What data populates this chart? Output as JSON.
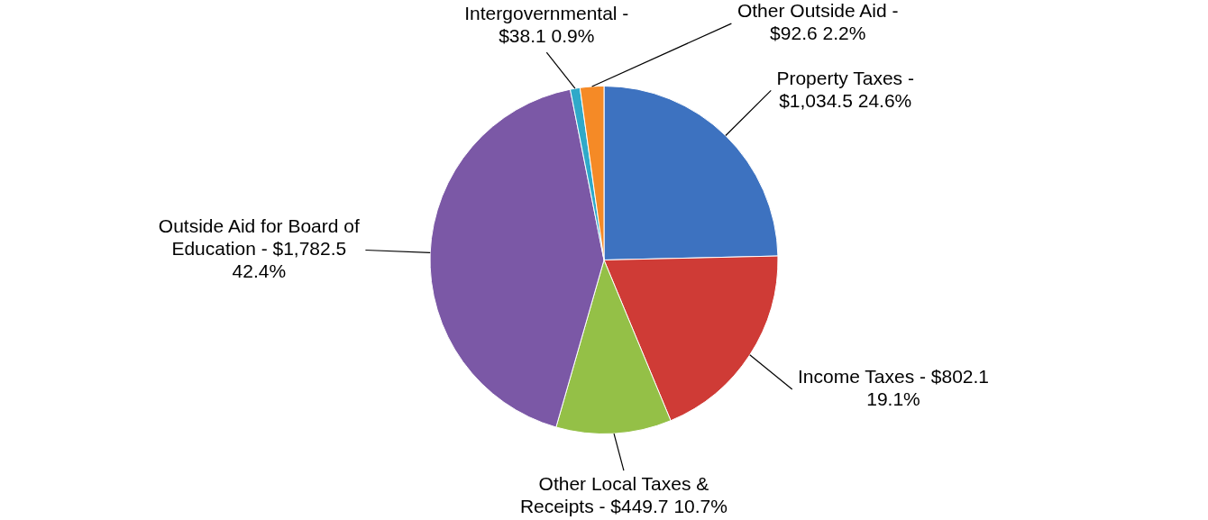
{
  "chart_data": {
    "type": "pie",
    "categories": [
      "Property Taxes -",
      "Income Taxes -",
      "Other Local Taxes & Receipts -",
      "Outside Aid for Board of Education -",
      "Intergovernmental -",
      "Other Outside Aid -"
    ],
    "values": [
      1034.5,
      802.1,
      449.7,
      1782.5,
      38.1,
      92.6
    ],
    "value_labels": [
      "$1,034.5 24.6%",
      "$802.1 19.1%",
      "$449.7 10.7%",
      "$1,782.5 42.4%",
      "$38.1 0.9%",
      "$92.6 2.2%"
    ],
    "colors": [
      "#3d72c0",
      "#cf3b36",
      "#94c047",
      "#7b58a6",
      "#2fa9c9",
      "#f58a26"
    ],
    "legend": false
  }
}
